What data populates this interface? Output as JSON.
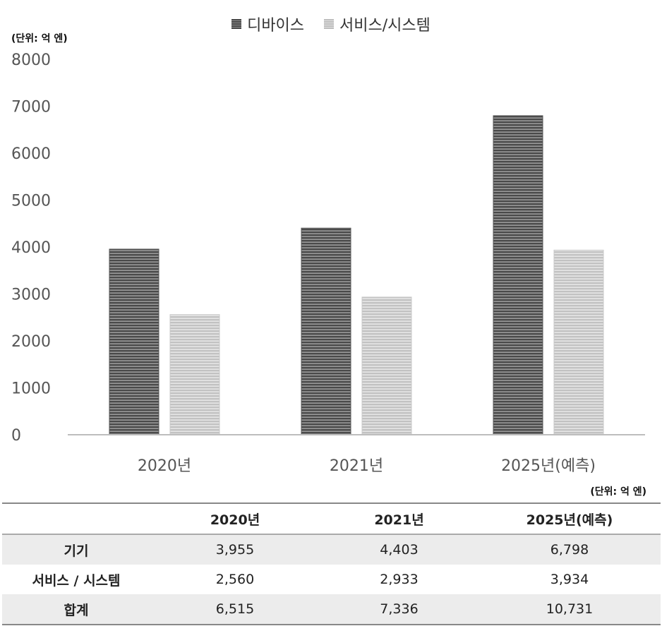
{
  "unit_top": "(단위: 억 엔)",
  "unit_table": "(단위: 억 엔)",
  "legend": [
    {
      "label": "디바이스",
      "color": "#555555"
    },
    {
      "label": "서비스/시스템",
      "color": "#cccccc"
    }
  ],
  "chart_data": {
    "type": "bar",
    "categories": [
      "2020년",
      "2021년",
      "2025년(예측)"
    ],
    "series": [
      {
        "name": "디바이스",
        "values": [
          3955,
          4403,
          6798
        ]
      },
      {
        "name": "서비스/시스템",
        "values": [
          2560,
          2933,
          3934
        ]
      }
    ],
    "ylim": [
      0,
      8000
    ],
    "yticks": [
      0,
      1000,
      2000,
      3000,
      4000,
      5000,
      6000,
      7000,
      8000
    ],
    "grid": false,
    "legend_position": "top"
  },
  "table": {
    "headers": [
      "",
      "2020년",
      "2021년",
      "2025년(예측)"
    ],
    "rows": [
      [
        "기기",
        "3,955",
        "4,403",
        "6,798"
      ],
      [
        "서비스 / 시스템",
        "2,560",
        "2,933",
        "3,934"
      ],
      [
        "합계",
        "6,515",
        "7,336",
        "10,731"
      ]
    ]
  }
}
